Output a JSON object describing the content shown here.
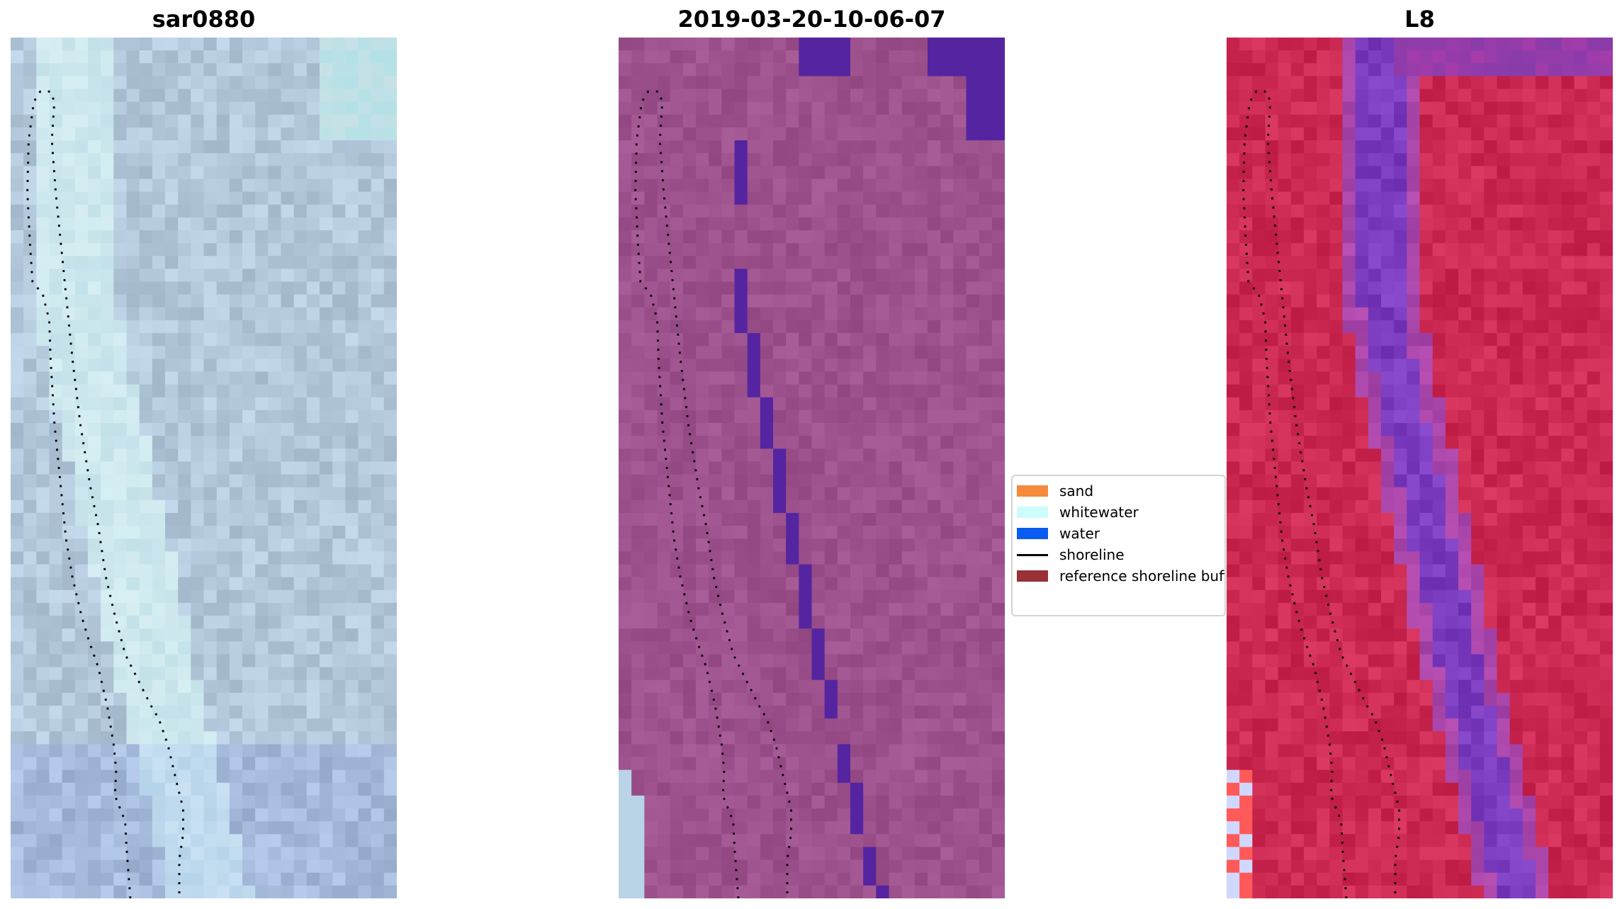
{
  "panels": [
    {
      "title": "sar0880",
      "kind": "rgb"
    },
    {
      "title": "2019-03-20-10-06-07",
      "kind": "classified"
    },
    {
      "title": "L8",
      "kind": "index"
    }
  ],
  "legend": [
    {
      "label": "sand",
      "color": "#f58a3c",
      "type": "patch"
    },
    {
      "label": "whitewater",
      "color": "#cdfcfc",
      "type": "patch"
    },
    {
      "label": "water",
      "color": "#0a5cf0",
      "type": "patch"
    },
    {
      "label": "shoreline",
      "color": "#000000",
      "type": "line"
    },
    {
      "label": "reference shoreline buffer",
      "color": "#9a3038",
      "type": "patch"
    }
  ],
  "colors": {
    "rgb_base": "#b4c8dc",
    "classified_base": "#9d528d",
    "classified_water": "#5524a0",
    "classified_whitewater": "#b8d4e6",
    "index_base": "#cc2a52",
    "index_purple": "#7b3cc0",
    "shoreline": "#000000"
  }
}
